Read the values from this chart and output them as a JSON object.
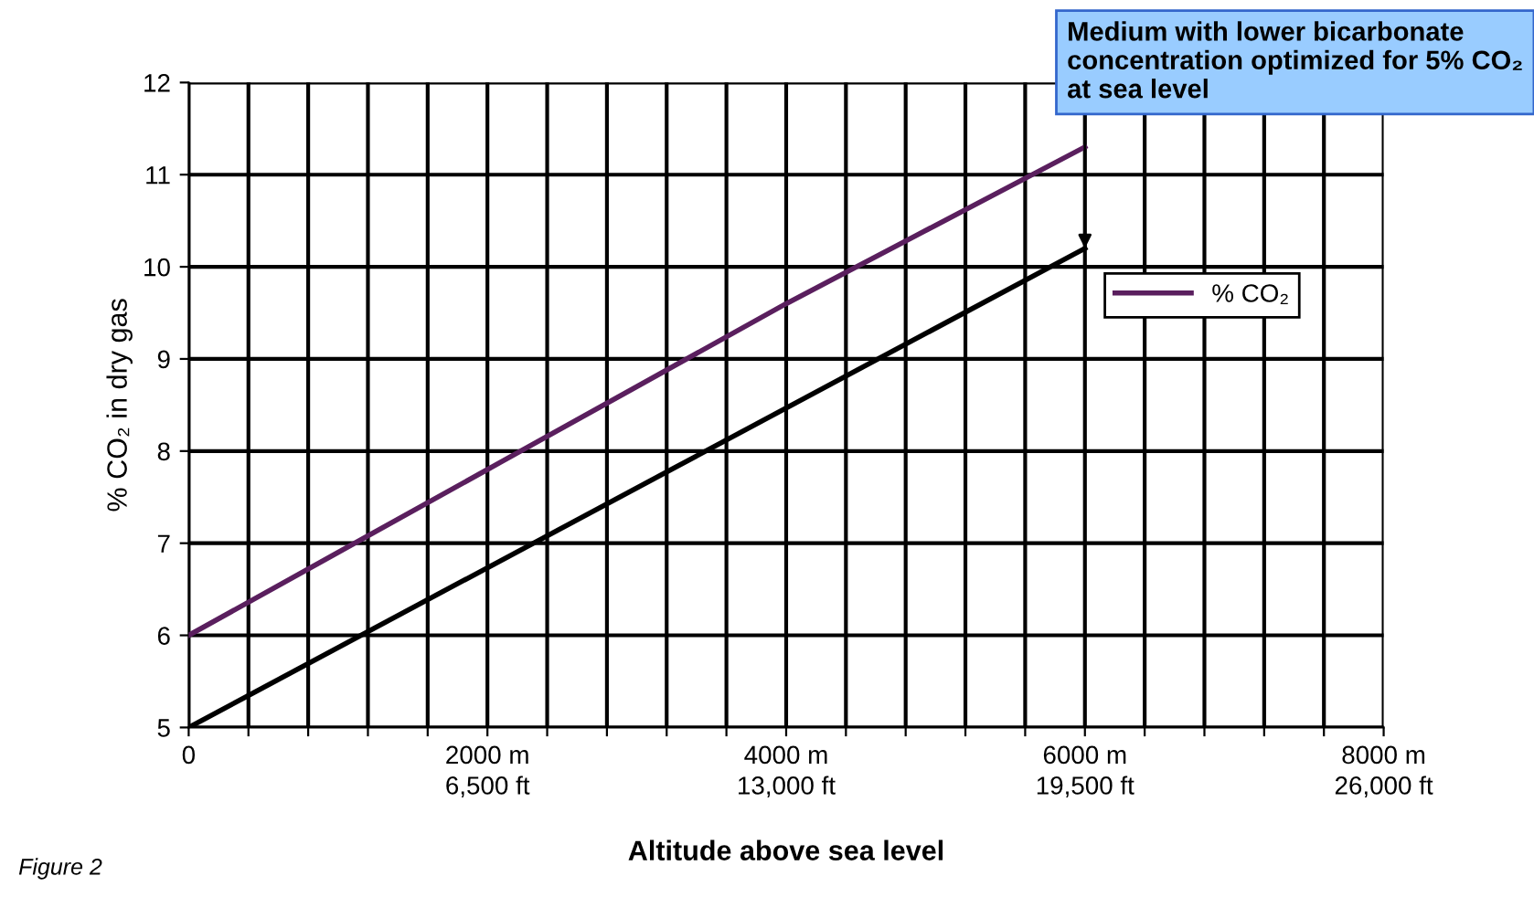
{
  "chart_data": {
    "type": "line",
    "xlabel": "Altitude above sea level",
    "ylabel": "% CO₂ in dry gas",
    "x": [
      0,
      1000,
      2000,
      3000,
      4000,
      5000,
      6000
    ],
    "series": [
      {
        "name": "% CO₂",
        "color": "#5a1f5e",
        "values": [
          6.0,
          6.9,
          7.8,
          8.7,
          9.6,
          10.45,
          11.3
        ]
      },
      {
        "color": "#000000",
        "x": [
          0,
          6000
        ],
        "values": [
          5.0,
          10.2
        ]
      }
    ],
    "xlim": [
      0,
      8000
    ],
    "xticks": [
      {
        "value": 0,
        "label": "0"
      },
      {
        "value": 400,
        "label": null
      },
      {
        "value": 800,
        "label": null
      },
      {
        "value": 1200,
        "label": null
      },
      {
        "value": 1600,
        "label": null
      },
      {
        "value": 2000,
        "label": "2000 m"
      },
      {
        "value": 2400,
        "label": null
      },
      {
        "value": 2800,
        "label": null
      },
      {
        "value": 3200,
        "label": null
      },
      {
        "value": 3600,
        "label": null
      },
      {
        "value": 4000,
        "label": "4000 m"
      },
      {
        "value": 4400,
        "label": null
      },
      {
        "value": 4800,
        "label": null
      },
      {
        "value": 5200,
        "label": null
      },
      {
        "value": 5600,
        "label": null
      },
      {
        "value": 6000,
        "label": "6000 m"
      },
      {
        "value": 6400,
        "label": null
      },
      {
        "value": 6800,
        "label": null
      },
      {
        "value": 7200,
        "label": null
      },
      {
        "value": 7600,
        "label": null
      },
      {
        "value": 8000,
        "label": "8000 m"
      }
    ],
    "x2lim": [
      0,
      26000
    ],
    "x2ticks": [
      {
        "value": 6500,
        "label": "6,500 ft"
      },
      {
        "value": 13000,
        "label": "13,000 ft"
      },
      {
        "value": 19500,
        "label": "19,500 ft"
      },
      {
        "value": 26000,
        "label": "26,000 ft"
      }
    ],
    "ylim": [
      5,
      12
    ],
    "yticks": [
      5,
      6,
      7,
      8,
      9,
      10,
      11,
      12
    ],
    "grid": true,
    "legend": "right",
    "marker": "none",
    "line_style": "solid",
    "annotations": [
      {
        "text": "Medium with lower bicarbonate concentration optimized for 5% CO₂ at sea level",
        "x": 6000,
        "y": 10.2
      },
      "Figure 2"
    ]
  }
}
